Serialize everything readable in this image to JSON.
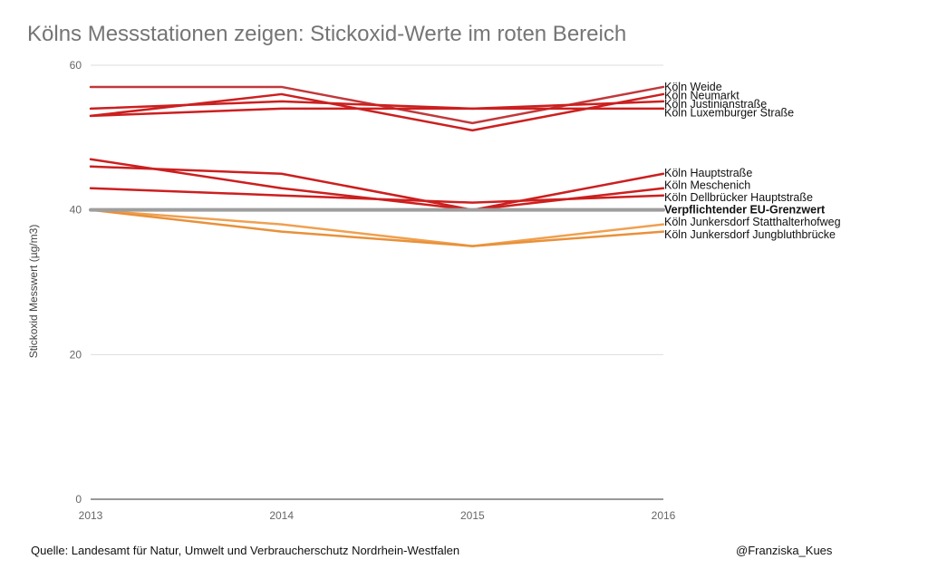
{
  "chart_data": {
    "type": "line",
    "title": "Kölns Messstationen zeigen: Stickoxid-Werte im roten Bereich",
    "ylabel": "Stickoxid Messwert (µg/m3)",
    "xlabel": "",
    "x": [
      "2013",
      "2014",
      "2015",
      "2016"
    ],
    "ylim": [
      0,
      60
    ],
    "yticks": [
      0,
      20,
      40,
      60
    ],
    "grid": true,
    "legend": "end-labels",
    "series": [
      {
        "name": "Köln Weide",
        "values": [
          57,
          57,
          52,
          57
        ],
        "color": "#c0393b",
        "label_y": 57.0
      },
      {
        "name": "Köln Neumarkt",
        "values": [
          53,
          56,
          51,
          56
        ],
        "color": "#cc1f1f",
        "label_y": 55.8
      },
      {
        "name": "Köln Justinianstraße",
        "values": [
          54,
          55,
          54,
          55
        ],
        "color": "#cc1f1f",
        "label_y": 54.6
      },
      {
        "name": "Köln Luxemburger Straße",
        "values": [
          53,
          54,
          54,
          54
        ],
        "color": "#cc1f1f",
        "label_y": 53.4
      },
      {
        "name": "Köln Hauptstraße",
        "values": [
          46,
          45,
          40,
          45
        ],
        "color": "#cc1f1f",
        "label_y": 45.1
      },
      {
        "name": "Köln Meschenich",
        "values": [
          47,
          43,
          40,
          43
        ],
        "color": "#cc1f1f",
        "label_y": 43.4
      },
      {
        "name": "Köln Dellbrücker Hauptstraße",
        "values": [
          43,
          42,
          41,
          42
        ],
        "color": "#cc1f1f",
        "label_y": 41.7
      },
      {
        "name": "Verpflichtender EU-Grenzwert",
        "values": [
          40,
          40,
          40,
          40
        ],
        "color": "#9e9e9e",
        "label_y": 40.0,
        "bold": true
      },
      {
        "name": "Köln Junkersdorf Statthalterhofweg",
        "values": [
          40,
          38,
          35,
          38
        ],
        "color": "#f0a050",
        "label_y": 38.3
      },
      {
        "name": "Köln Junkersdorf Jungbluthbrücke",
        "values": [
          40,
          37,
          35,
          37
        ],
        "color": "#e8913a",
        "label_y": 36.6
      }
    ]
  },
  "footer": {
    "source": "Quelle: Landesamt für Natur, Umwelt und Verbraucherschutz Nordrhein-Westfalen",
    "credit": "@Franziska_Kues"
  }
}
